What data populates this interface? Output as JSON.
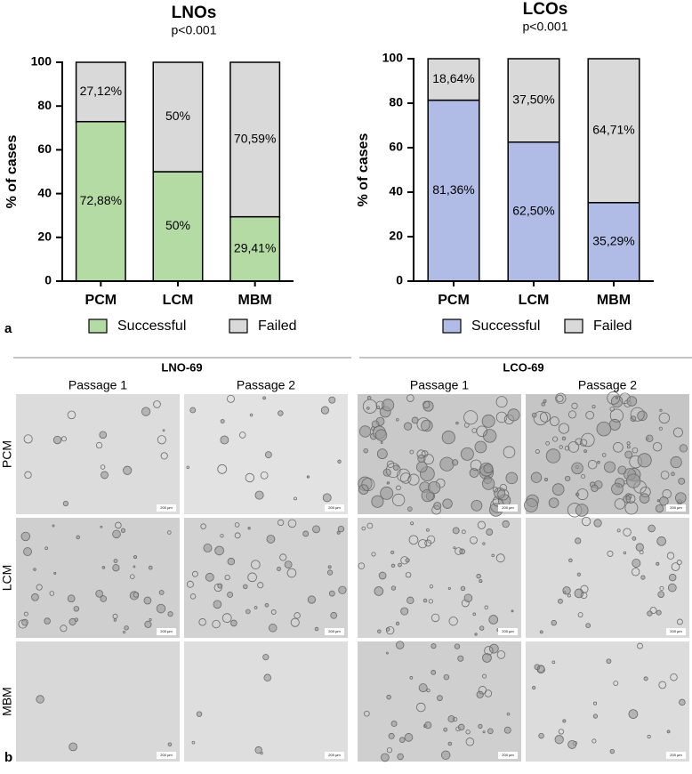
{
  "chart_data": [
    {
      "type": "bar",
      "stacked": true,
      "title": "LNOs",
      "subtitle": "p<0.001",
      "y_label": "% of cases",
      "categories": [
        "PCM",
        "LCM",
        "MBM"
      ],
      "series": [
        {
          "name": "Successful",
          "color": "#b5dba5",
          "values": [
            72.88,
            50,
            29.41
          ],
          "value_labels": [
            "72,88%",
            "50%",
            "29,41%"
          ]
        },
        {
          "name": "Failed",
          "color": "#d9d9d9",
          "values": [
            27.12,
            50,
            70.59
          ],
          "value_labels": [
            "27,12%",
            "50%",
            "70,59%"
          ]
        }
      ],
      "ylim": [
        0,
        100
      ],
      "yticks": [
        0,
        20,
        40,
        60,
        80,
        100
      ],
      "grid": false,
      "legend": "bottom"
    },
    {
      "type": "bar",
      "stacked": true,
      "title": "LCOs",
      "subtitle": "p<0.001",
      "y_label": "% of cases",
      "categories": [
        "PCM",
        "LCM",
        "MBM"
      ],
      "series": [
        {
          "name": "Successful",
          "color": "#b0bce6",
          "values": [
            81.36,
            62.5,
            35.29
          ],
          "value_labels": [
            "81,36%",
            "62,50%",
            "35,29%"
          ]
        },
        {
          "name": "Failed",
          "color": "#d9d9d9",
          "values": [
            18.64,
            37.5,
            64.71
          ],
          "value_labels": [
            "18,64%",
            "37,50%",
            "64,71%"
          ]
        }
      ],
      "ylim": [
        0,
        100
      ],
      "yticks": [
        0,
        20,
        40,
        60,
        80,
        100
      ],
      "grid": false,
      "legend": "bottom"
    }
  ],
  "panel_a_label": "a",
  "panel_b": {
    "label": "b",
    "groups": [
      {
        "title": "LNO-69",
        "columns": [
          "Passage 1",
          "Passage 2"
        ]
      },
      {
        "title": "LCO-69",
        "columns": [
          "Passage 1",
          "Passage 2"
        ]
      }
    ],
    "rows": [
      "PCM",
      "LCM",
      "MBM"
    ],
    "scale_bar": "200 µm"
  }
}
